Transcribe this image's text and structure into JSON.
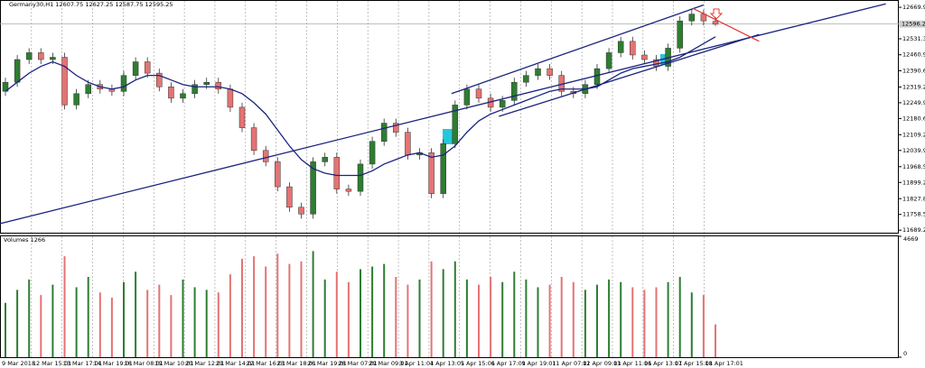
{
  "chart_data": {
    "type": "candlestick",
    "title": "Germany30,H1  12607.75 12627.25 12587.75 12595.25",
    "open": [
      12300,
      12340,
      12440,
      12470,
      12440,
      12450,
      12240,
      12290,
      12330,
      12310,
      12300,
      12370,
      12430,
      12380,
      12320,
      12270,
      12290,
      12330,
      12340,
      12310,
      12230,
      12140,
      12040,
      11990,
      11880,
      11790,
      11760,
      11990,
      12010,
      11870,
      11860,
      11980,
      12080,
      12160,
      12120,
      12020,
      12030,
      11850,
      12070,
      12240,
      12310,
      12270,
      12230,
      12260,
      12340,
      12370,
      12400,
      12370,
      12300,
      12290,
      12330,
      12400,
      12470,
      12520,
      12460,
      12440,
      12410,
      12490,
      12610,
      12640,
      12607.75
    ],
    "high": [
      12360,
      12460,
      12490,
      12490,
      12470,
      12470,
      12310,
      12350,
      12350,
      12330,
      12390,
      12450,
      12450,
      12400,
      12340,
      12310,
      12350,
      12360,
      12360,
      12330,
      12250,
      12160,
      12060,
      12010,
      11900,
      11810,
      12010,
      12030,
      12030,
      11890,
      12000,
      12100,
      12180,
      12180,
      12140,
      12050,
      12050,
      12090,
      12260,
      12330,
      12330,
      12290,
      12280,
      12360,
      12390,
      12420,
      12420,
      12390,
      12320,
      12350,
      12420,
      12490,
      12540,
      12540,
      12480,
      12460,
      12510,
      12630,
      12660,
      12660,
      12627.25
    ],
    "low": [
      12280,
      12320,
      12420,
      12420,
      12420,
      12220,
      12220,
      12270,
      12290,
      12280,
      12280,
      12350,
      12360,
      12300,
      12250,
      12250,
      12270,
      12310,
      12290,
      12210,
      12120,
      12020,
      11970,
      11860,
      11770,
      11740,
      11740,
      11970,
      11850,
      11840,
      11840,
      11960,
      12060,
      12100,
      12000,
      12000,
      11830,
      11830,
      12050,
      12220,
      12250,
      12210,
      12210,
      12240,
      12320,
      12350,
      12350,
      12280,
      12270,
      12270,
      12310,
      12380,
      12450,
      12440,
      12420,
      12390,
      12390,
      12470,
      12590,
      12590,
      12587.75
    ],
    "close": [
      12340,
      12440,
      12470,
      12440,
      12450,
      12240,
      12290,
      12330,
      12310,
      12300,
      12370,
      12430,
      12380,
      12320,
      12270,
      12290,
      12330,
      12340,
      12310,
      12230,
      12140,
      12040,
      11990,
      11880,
      11790,
      11760,
      11990,
      12010,
      11870,
      11860,
      11980,
      12080,
      12160,
      12120,
      12020,
      12030,
      11850,
      12070,
      12240,
      12310,
      12270,
      12230,
      12260,
      12340,
      12370,
      12400,
      12370,
      12300,
      12290,
      12330,
      12400,
      12470,
      12520,
      12460,
      12440,
      12410,
      12490,
      12610,
      12640,
      12610,
      12595.25
    ],
    "moving_average": {
      "color": "#1a237e",
      "values": [
        12300,
        12340,
        12380,
        12410,
        12430,
        12410,
        12370,
        12340,
        12320,
        12310,
        12320,
        12350,
        12370,
        12370,
        12350,
        12330,
        12320,
        12320,
        12320,
        12310,
        12290,
        12250,
        12200,
        12130,
        12060,
        12000,
        11960,
        11940,
        11930,
        11930,
        11930,
        11950,
        11980,
        12000,
        12020,
        12030,
        12010,
        12020,
        12060,
        12120,
        12170,
        12200,
        12220,
        12240,
        12260,
        12280,
        12300,
        12310,
        12310,
        12310,
        12320,
        12350,
        12380,
        12400,
        12410,
        12420,
        12430,
        12450,
        12480,
        12510,
        12540
      ]
    },
    "volume_label": "Volumes 1266",
    "volumes": [
      2100,
      2600,
      3000,
      2400,
      2800,
      3900,
      2700,
      3100,
      2500,
      2300,
      2900,
      3300,
      2600,
      2800,
      2400,
      3000,
      2700,
      2600,
      2500,
      3200,
      3800,
      3900,
      3500,
      4000,
      3600,
      3700,
      4100,
      3000,
      3300,
      2900,
      3400,
      3500,
      3600,
      3100,
      2800,
      3000,
      3700,
      3400,
      3700,
      3000,
      2800,
      3100,
      2900,
      3300,
      3000,
      2700,
      2800,
      3100,
      2900,
      2600,
      2800,
      3000,
      2900,
      2700,
      2600,
      2700,
      2900,
      3100,
      2500,
      2400,
      1266
    ],
    "volume_ylim": [
      0,
      4669
    ],
    "volume_yticks": [
      4669,
      0
    ],
    "up_color": "#2e7d32",
    "down_color": "#e57373",
    "ylim": [
      11678,
      12698
    ],
    "yticks": [
      {
        "value": 12669.9,
        "label": "12669.90"
      },
      {
        "value": 12531.3,
        "label": "12531.30"
      },
      {
        "value": 12460.9,
        "label": "12460.90"
      },
      {
        "value": 12390.6,
        "label": "12390.60"
      },
      {
        "value": 12319.2,
        "label": "12319.20"
      },
      {
        "value": 12249.9,
        "label": "12249.90"
      },
      {
        "value": 12180.6,
        "label": "12180.60"
      },
      {
        "value": 12109.2,
        "label": "12109.20"
      },
      {
        "value": 12039.9,
        "label": "12039.90"
      },
      {
        "value": 11968.5,
        "label": "11968.50"
      },
      {
        "value": 11899.2,
        "label": "11899.20"
      },
      {
        "value": 11827.8,
        "label": "11827.80"
      },
      {
        "value": 11758.5,
        "label": "11758.50"
      },
      {
        "value": 11689.2,
        "label": "11689.20"
      }
    ],
    "current_price": {
      "value": 12596.25,
      "label": "12596.25"
    },
    "categories": [
      "9 Mar 2018",
      "12 Mar 15:01",
      "13 Mar 17:01",
      "14 Mar 19:01",
      "16 Mar 08:01",
      "19 Mar 10:01",
      "20 Mar 12:01",
      "21 Mar 14:01",
      "22 Mar 16:01",
      "23 Mar 18:01",
      "26 Mar 19:01",
      "28 Mar 07:01",
      "29 Mar 09:01",
      "3 Apr 11:01",
      "4 Apr 13:01",
      "5 Apr 15:01",
      "6 Apr 17:01",
      "9 Apr 19:01",
      "11 Apr 07:01",
      "12 Apr 09:01",
      "13 Apr 11:01",
      "16 Apr 13:01",
      "17 Apr 15:01",
      "18 Apr 17:01"
    ],
    "trendlines": [
      {
        "color": "#1a237e",
        "from": [
          -3.4,
          11680
        ],
        "to": [
          74.4,
          12685
        ]
      },
      {
        "color": "#1a237e",
        "from": [
          37.7,
          12290
        ],
        "to": [
          59,
          12680
        ]
      },
      {
        "color": "#1a237e",
        "from": [
          41.7,
          12190
        ],
        "to": [
          63.7,
          12550
        ]
      },
      {
        "color": "#e53935",
        "from": [
          58.1,
          12665
        ],
        "to": [
          63.7,
          12520
        ]
      }
    ],
    "grid": true
  }
}
